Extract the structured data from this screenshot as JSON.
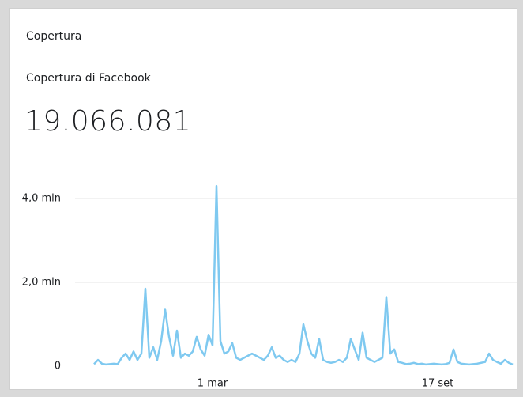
{
  "card": {
    "title": "Copertura",
    "subtitle": "Copertura di Facebook",
    "total": "19.066.081"
  },
  "chart_data": {
    "type": "line",
    "categories": [
      null,
      null,
      null,
      null,
      null,
      null,
      null,
      null,
      null,
      null,
      null,
      null,
      null,
      null,
      null,
      null,
      null,
      null,
      null,
      null,
      null,
      null,
      null,
      null,
      null,
      null,
      null,
      null,
      null,
      null,
      "1 mar",
      null,
      null,
      null,
      null,
      null,
      null,
      null,
      null,
      null,
      null,
      null,
      null,
      null,
      null,
      null,
      null,
      null,
      null,
      null,
      null,
      null,
      null,
      null,
      null,
      null,
      null,
      null,
      null,
      null,
      null,
      null,
      null,
      null,
      null,
      null,
      null,
      null,
      null,
      null,
      null,
      null,
      null,
      null,
      null,
      null,
      null,
      null,
      null,
      null,
      null,
      null,
      null,
      null,
      null,
      null,
      null,
      "17 set",
      null,
      null,
      null,
      null,
      null,
      null,
      null,
      null,
      null,
      null,
      null,
      null,
      null,
      null,
      null,
      null,
      null,
      null,
      null
    ],
    "series": [
      {
        "color": "#7fc9f0",
        "values": [
          50000,
          150000,
          60000,
          40000,
          50000,
          60000,
          50000,
          200000,
          300000,
          150000,
          350000,
          150000,
          300000,
          1850000,
          200000,
          450000,
          150000,
          600000,
          1350000,
          700000,
          250000,
          850000,
          200000,
          300000,
          250000,
          350000,
          700000,
          400000,
          250000,
          750000,
          500000,
          4300000,
          600000,
          300000,
          350000,
          550000,
          200000,
          150000,
          200000,
          250000,
          300000,
          250000,
          200000,
          150000,
          250000,
          450000,
          200000,
          250000,
          150000,
          100000,
          150000,
          100000,
          300000,
          1000000,
          600000,
          300000,
          200000,
          650000,
          150000,
          100000,
          80000,
          100000,
          150000,
          100000,
          200000,
          650000,
          400000,
          150000,
          800000,
          200000,
          150000,
          100000,
          150000,
          200000,
          1650000,
          300000,
          400000,
          100000,
          80000,
          50000,
          60000,
          80000,
          50000,
          60000,
          40000,
          50000,
          60000,
          50000,
          40000,
          50000,
          80000,
          400000,
          100000,
          60000,
          50000,
          40000,
          50000,
          60000,
          80000,
          100000,
          300000,
          150000,
          100000,
          60000,
          150000,
          80000,
          40000
        ]
      }
    ],
    "ylim": [
      0,
      4400000
    ],
    "yticks": [
      {
        "value": 0,
        "label": "0"
      },
      {
        "value": 2000000,
        "label": "2,0 mln"
      },
      {
        "value": 4000000,
        "label": "4,0 mln"
      }
    ],
    "grid": true
  }
}
